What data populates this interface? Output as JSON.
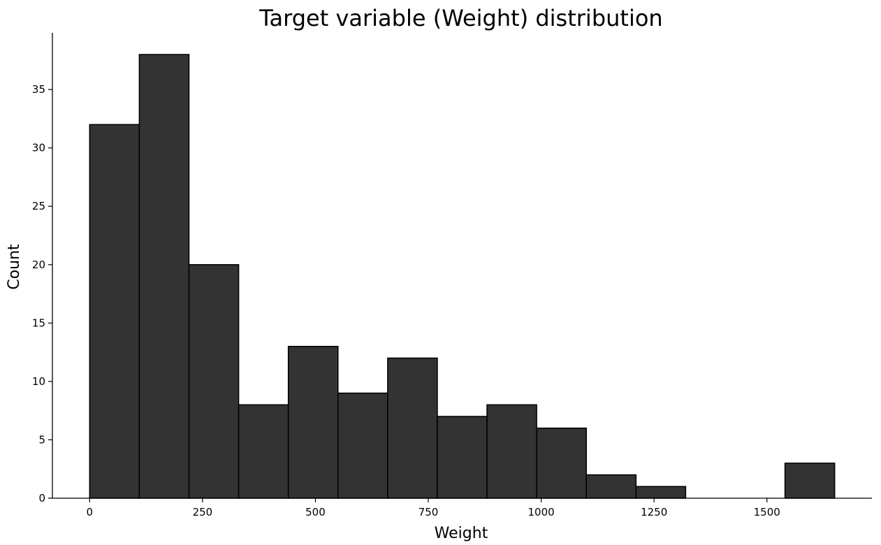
{
  "chart_data": {
    "type": "bar",
    "subtype": "histogram",
    "title": "Target variable (Weight) distribution",
    "xlabel": "Weight",
    "ylabel": "Count",
    "bin_edges": [
      0,
      110,
      220,
      330,
      440,
      550,
      660,
      770,
      880,
      990,
      1100,
      1210,
      1320,
      1430,
      1540,
      1650
    ],
    "values": [
      32,
      38,
      20,
      8,
      13,
      9,
      12,
      7,
      8,
      6,
      2,
      1,
      0,
      0,
      3
    ],
    "xlim": [
      -82.5,
      1732.5
    ],
    "ylim": [
      0,
      38
    ],
    "xticks": [
      "0",
      "250",
      "500",
      "750",
      "1000",
      "1250",
      "1500"
    ],
    "yticks": [
      "0",
      "5",
      "10",
      "15",
      "20",
      "25",
      "30",
      "35"
    ],
    "bar_color": "#333333",
    "edge_color": "#000000",
    "grid": false,
    "spines": "left-bottom"
  }
}
